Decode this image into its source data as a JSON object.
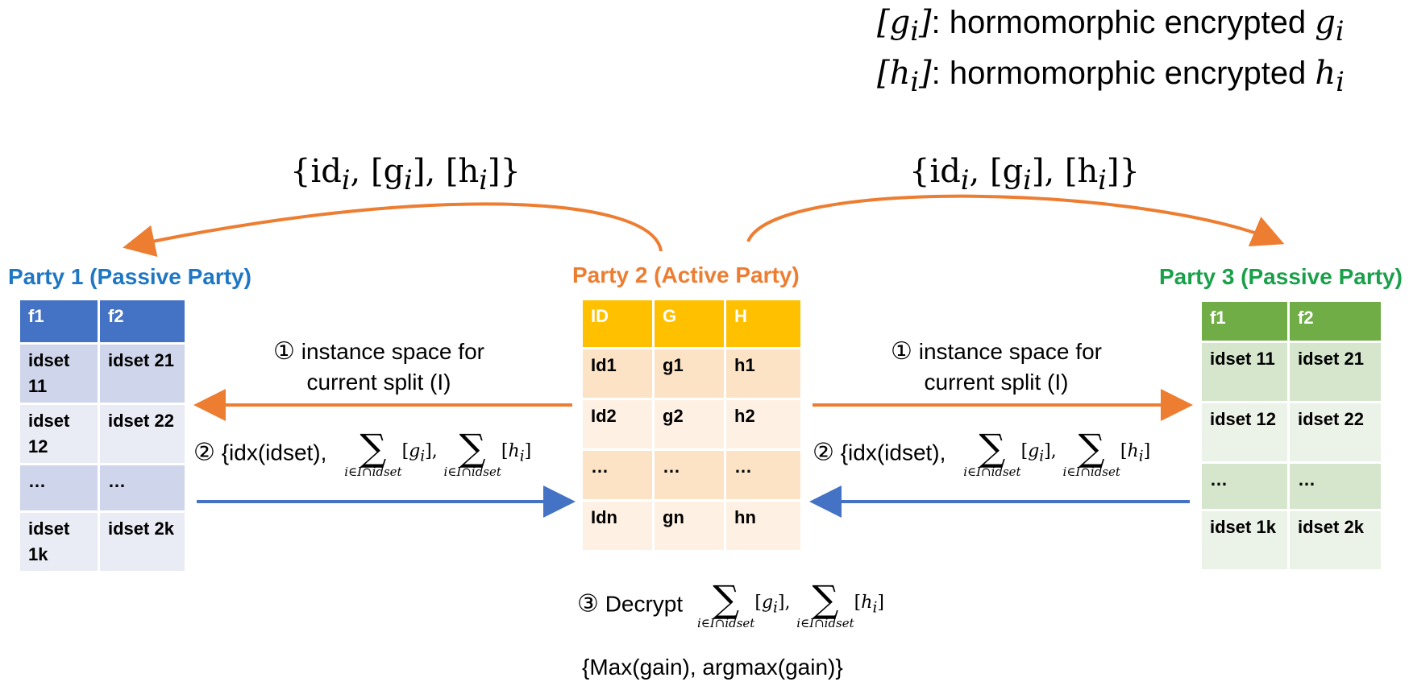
{
  "legend": [
    {
      "sym": "[g",
      "sub": "i",
      "close": "]",
      "text": ": hormomorphic encrypted ",
      "var": "g",
      "var_sub": "i"
    },
    {
      "sym": "[h",
      "sub": "i",
      "close": "]",
      "text": ": hormomorphic encrypted ",
      "var": "h",
      "var_sub": "i"
    }
  ],
  "top_label": {
    "open": "{id",
    "sub1": "i",
    "mid1": ", [g",
    "sub2": "i",
    "mid2": "], [h",
    "sub3": "i",
    "close": "]}"
  },
  "party1": {
    "title": "Party 1 (Passive Party)",
    "headers": [
      "f1",
      "f2"
    ],
    "rows": [
      [
        "idset 11",
        "idset 21"
      ],
      [
        "idset 12",
        "idset 22"
      ],
      [
        "…",
        "…"
      ],
      [
        "idset 1k",
        "idset 2k"
      ]
    ]
  },
  "party2": {
    "title": "Party 2 (Active Party)",
    "headers": [
      "ID",
      "G",
      "H"
    ],
    "rows": [
      [
        "Id1",
        "g1",
        "h1"
      ],
      [
        "Id2",
        "g2",
        "h2"
      ],
      [
        "…",
        "…",
        "…"
      ],
      [
        "Idn",
        "gn",
        "hn"
      ]
    ]
  },
  "party3": {
    "title": "Party 3 (Passive Party)",
    "headers": [
      "f1",
      "f2"
    ],
    "rows": [
      [
        "idset 11",
        "idset 21"
      ],
      [
        "idset 12",
        "idset 22"
      ],
      [
        "…",
        "…"
      ],
      [
        "idset 1k",
        "idset 2k"
      ]
    ]
  },
  "step1": {
    "num": "①",
    "line1": "instance space for",
    "line2": "current split (I)"
  },
  "step2": {
    "num": "②",
    "text": "{idx(idset),",
    "sum_sub": "i∈I∩idset",
    "g": "g",
    "h": "h",
    "idx": "i"
  },
  "step3": {
    "num": "③",
    "text": "Decrypt",
    "sum_sub": "i∈I∩idset"
  },
  "result": "{Max(gain), argmax(gain)}",
  "colors": {
    "blue": "#4472c4",
    "orange": "#ed7d31",
    "green": "#70ad47",
    "gold": "#ffc000",
    "p1_title": "#1f77c4",
    "p2_title": "#ed7d31",
    "p3_title": "#1aa04a"
  }
}
